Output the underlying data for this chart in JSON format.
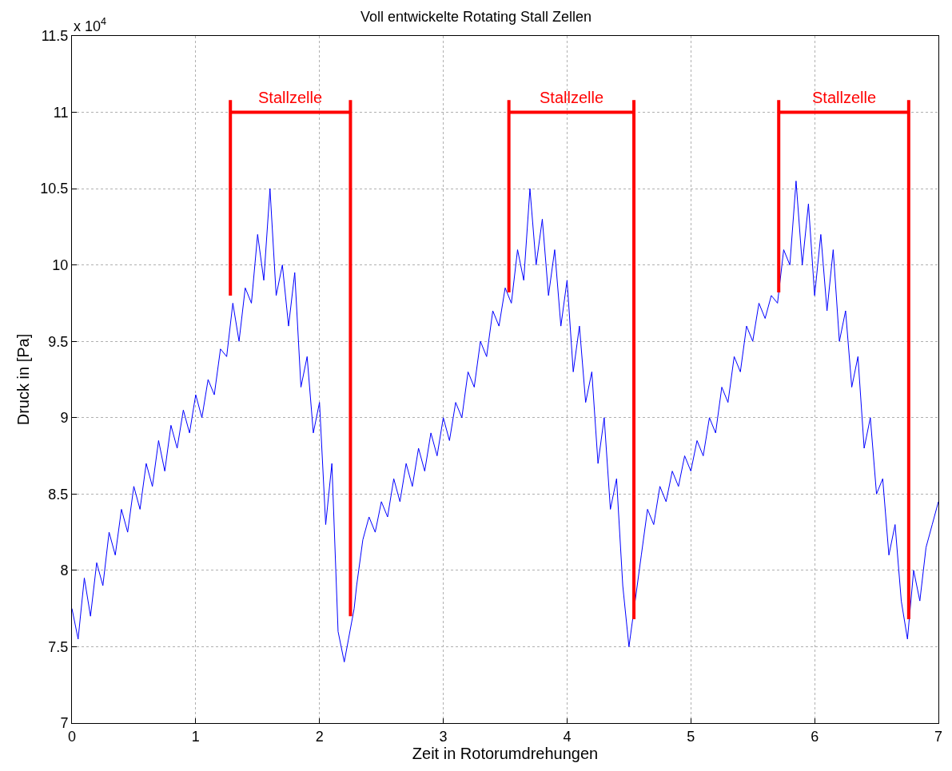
{
  "chart_data": {
    "type": "line",
    "title": "Voll entwickelte Rotating Stall Zellen",
    "xlabel": "Zeit in Rotorumdrehungen",
    "ylabel": "Druck in [Pa]",
    "xlim": [
      0,
      7
    ],
    "xticks": [
      0,
      1,
      2,
      3,
      4,
      5,
      6,
      7
    ],
    "ylim": [
      7,
      11.5
    ],
    "yticks": [
      7,
      7.5,
      8,
      8.5,
      9,
      9.5,
      10,
      10.5,
      11,
      11.5
    ],
    "grid": true,
    "marker": "none",
    "line_style": "solid",
    "annotations": [
      "x 10$^{4}$",
      {
        "text": "Stallzelle",
        "x": 1.765,
        "y": 11.0
      },
      {
        "text": "Stallzelle",
        "x": 4.035,
        "y": 11.0
      },
      {
        "text": "Stallzelle",
        "x": 6.235,
        "y": 11.0
      }
    ],
    "series": [
      {
        "color": "#0000ff",
        "x": [
          0.0,
          0.05,
          0.1,
          0.15,
          0.2,
          0.25,
          0.3,
          0.35,
          0.4,
          0.45,
          0.5,
          0.55,
          0.6,
          0.65,
          0.7,
          0.75,
          0.8,
          0.85,
          0.9,
          0.95,
          1.0,
          1.05,
          1.1,
          1.15,
          1.2,
          1.25,
          1.3,
          1.35,
          1.4,
          1.45,
          1.5,
          1.55,
          1.6,
          1.65,
          1.7,
          1.75,
          1.8,
          1.85,
          1.9,
          1.95,
          2.0,
          2.05,
          2.1,
          2.15,
          2.2,
          2.28,
          2.3,
          2.35,
          2.4,
          2.45,
          2.5,
          2.55,
          2.6,
          2.65,
          2.7,
          2.75,
          2.8,
          2.85,
          2.9,
          2.95,
          3.0,
          3.05,
          3.1,
          3.15,
          3.2,
          3.25,
          3.3,
          3.35,
          3.4,
          3.45,
          3.5,
          3.55,
          3.6,
          3.65,
          3.7,
          3.75,
          3.8,
          3.85,
          3.9,
          3.95,
          4.0,
          4.05,
          4.1,
          4.15,
          4.2,
          4.25,
          4.3,
          4.35,
          4.4,
          4.45,
          4.5,
          4.55,
          4.6,
          4.65,
          4.7,
          4.75,
          4.8,
          4.85,
          4.9,
          4.95,
          5.0,
          5.05,
          5.1,
          5.15,
          5.2,
          5.25,
          5.3,
          5.35,
          5.4,
          5.45,
          5.5,
          5.55,
          5.6,
          5.65,
          5.7,
          5.75,
          5.8,
          5.85,
          5.9,
          5.95,
          6.0,
          6.05,
          6.1,
          6.15,
          6.2,
          6.25,
          6.3,
          6.35,
          6.4,
          6.45,
          6.5,
          6.55,
          6.6,
          6.65,
          6.7,
          6.75,
          6.8,
          6.85,
          6.9,
          6.95,
          7.0
        ],
        "values": [
          7.75,
          7.55,
          7.95,
          7.7,
          8.05,
          7.9,
          8.25,
          8.1,
          8.4,
          8.25,
          8.55,
          8.4,
          8.7,
          8.55,
          8.85,
          8.65,
          8.95,
          8.8,
          9.05,
          8.9,
          9.15,
          9.0,
          9.25,
          9.15,
          9.45,
          9.4,
          9.75,
          9.5,
          9.85,
          9.75,
          10.2,
          9.9,
          10.5,
          9.8,
          10.0,
          9.6,
          9.95,
          9.2,
          9.4,
          8.9,
          9.1,
          8.3,
          8.7,
          7.6,
          7.4,
          7.75,
          7.9,
          8.2,
          8.35,
          8.25,
          8.45,
          8.35,
          8.6,
          8.45,
          8.7,
          8.55,
          8.8,
          8.65,
          8.9,
          8.75,
          9.0,
          8.85,
          9.1,
          9.0,
          9.3,
          9.2,
          9.5,
          9.4,
          9.7,
          9.6,
          9.85,
          9.75,
          10.1,
          9.9,
          10.5,
          10.0,
          10.3,
          9.8,
          10.1,
          9.6,
          9.9,
          9.3,
          9.6,
          9.1,
          9.3,
          8.7,
          9.0,
          8.4,
          8.6,
          7.9,
          7.5,
          7.8,
          8.1,
          8.4,
          8.3,
          8.55,
          8.45,
          8.65,
          8.55,
          8.75,
          8.65,
          8.85,
          8.75,
          9.0,
          8.9,
          9.2,
          9.1,
          9.4,
          9.3,
          9.6,
          9.5,
          9.75,
          9.65,
          9.8,
          9.75,
          10.1,
          10.0,
          10.55,
          10.0,
          10.4,
          9.8,
          10.2,
          9.7,
          10.1,
          9.5,
          9.7,
          9.2,
          9.4,
          8.8,
          9.0,
          8.5,
          8.6,
          8.1,
          8.3,
          7.8,
          7.55,
          8.0,
          7.8,
          8.15,
          8.3,
          8.45
        ]
      },
      {
        "color": "#ff0000",
        "x": [
          1.28,
          1.28,
          1.28,
          2.25,
          2.25,
          2.25
        ],
        "values": [
          9.8,
          11.08,
          11.0,
          11.0,
          11.08,
          7.7
        ]
      },
      {
        "color": "#ff0000",
        "x": [
          3.53,
          3.53,
          3.53,
          4.54,
          4.54,
          4.54
        ],
        "values": [
          9.82,
          11.08,
          11.0,
          11.0,
          11.08,
          7.68
        ]
      },
      {
        "color": "#ff0000",
        "x": [
          5.71,
          5.71,
          5.71,
          6.76,
          6.76,
          6.76
        ],
        "values": [
          9.82,
          11.08,
          11.0,
          11.0,
          11.08,
          7.68
        ]
      }
    ]
  }
}
